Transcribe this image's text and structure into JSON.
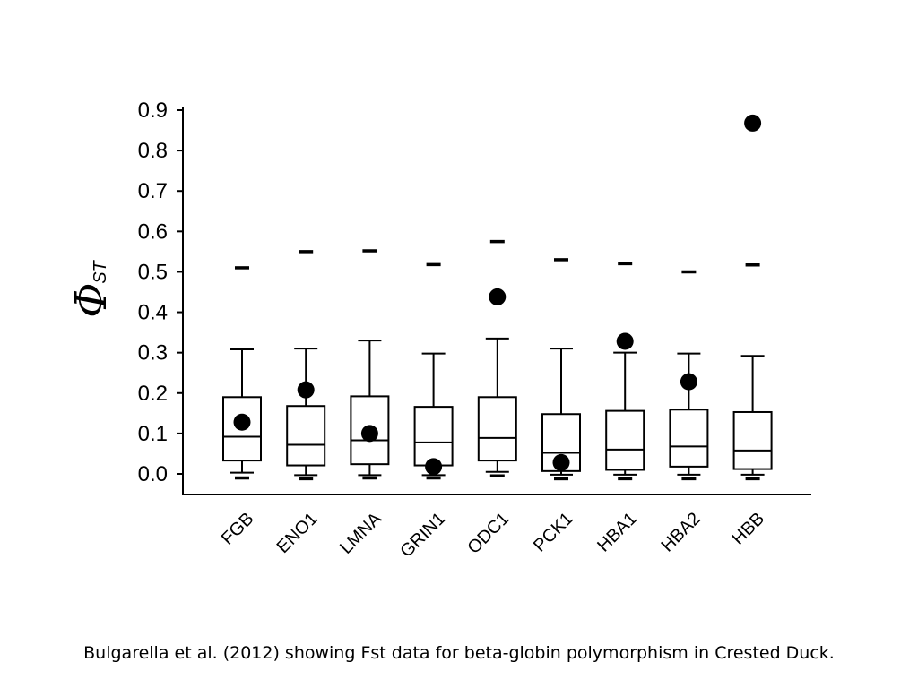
{
  "chart_data": {
    "type": "box",
    "ylabel_main": "Φ",
    "ylabel_sub": "ST",
    "ylim": [
      0.0,
      0.9
    ],
    "yticks": [
      "0.9",
      "0.8",
      "0.7",
      "0.6",
      "0.5",
      "0.4",
      "0.3",
      "0.2",
      "0.1",
      "0.0"
    ],
    "ytick_values": [
      0.9,
      0.8,
      0.7,
      0.6,
      0.5,
      0.4,
      0.3,
      0.2,
      0.1,
      0.0
    ],
    "categories": [
      "FGB",
      "ENO1",
      "LMNA",
      "GRIN1",
      "ODC1",
      "PCK1",
      "HBA1",
      "HBA2",
      "HBB"
    ],
    "boxes": [
      {
        "label": "FGB",
        "whisker_low": 0.003,
        "q1": 0.033,
        "median": 0.092,
        "q3": 0.19,
        "whisker_high": 0.308,
        "max": 0.51,
        "min": -0.01,
        "observed": 0.128
      },
      {
        "label": "ENO1",
        "whisker_low": -0.003,
        "q1": 0.021,
        "median": 0.072,
        "q3": 0.168,
        "whisker_high": 0.31,
        "max": 0.55,
        "min": -0.012,
        "observed": 0.208
      },
      {
        "label": "LMNA",
        "whisker_low": -0.003,
        "q1": 0.024,
        "median": 0.083,
        "q3": 0.192,
        "whisker_high": 0.33,
        "max": 0.552,
        "min": -0.01,
        "observed": 0.1
      },
      {
        "label": "GRIN1",
        "whisker_low": -0.003,
        "q1": 0.021,
        "median": 0.078,
        "q3": 0.166,
        "whisker_high": 0.298,
        "max": 0.518,
        "min": -0.01,
        "observed": 0.018
      },
      {
        "label": "ODC1",
        "whisker_low": 0.005,
        "q1": 0.033,
        "median": 0.089,
        "q3": 0.19,
        "whisker_high": 0.335,
        "max": 0.575,
        "min": -0.005,
        "observed": 0.438
      },
      {
        "label": "PCK1",
        "whisker_low": -0.002,
        "q1": 0.007,
        "median": 0.052,
        "q3": 0.148,
        "whisker_high": 0.31,
        "max": 0.53,
        "min": -0.012,
        "observed": 0.028
      },
      {
        "label": "HBA1",
        "whisker_low": -0.002,
        "q1": 0.01,
        "median": 0.06,
        "q3": 0.156,
        "whisker_high": 0.3,
        "max": 0.52,
        "min": -0.012,
        "observed": 0.328
      },
      {
        "label": "HBA2",
        "whisker_low": -0.002,
        "q1": 0.018,
        "median": 0.068,
        "q3": 0.159,
        "whisker_high": 0.298,
        "max": 0.5,
        "min": -0.012,
        "observed": 0.228
      },
      {
        "label": "HBB",
        "whisker_low": -0.002,
        "q1": 0.012,
        "median": 0.058,
        "q3": 0.153,
        "whisker_high": 0.292,
        "max": 0.517,
        "min": -0.012,
        "observed": 0.868
      }
    ],
    "grid": false,
    "legend": "none"
  },
  "caption": "Bulgarella et al. (2012) showing Fst data for beta-globin polymorphism in Crested Duck.",
  "colors": {
    "ink": "#000000",
    "box_fill": "#ffffff",
    "background": "#ffffff"
  }
}
